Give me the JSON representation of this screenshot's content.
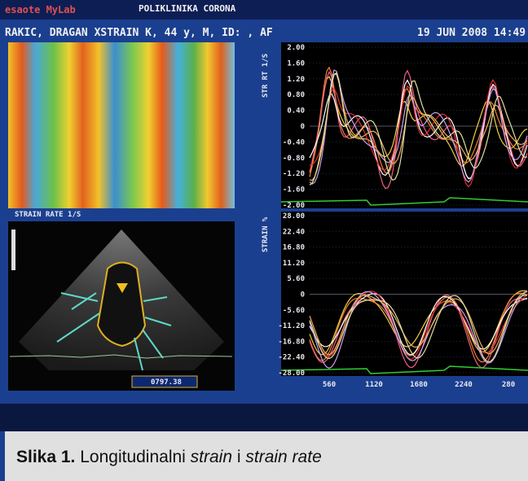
{
  "header": {
    "brand": "esaote MyLab",
    "clinic": "POLIKLINIKA CORONA",
    "patient": "RAKIC, DRAGAN XSTRAIN K, 44 y, M, ID: , AF",
    "date": "19 JUN 2008 14:49"
  },
  "left": {
    "heatmap_label": "STRAIN RATE 1/S",
    "readout": "0797.38"
  },
  "strain_rate_plot": {
    "axis_label": "STR RT 1/S",
    "ticks": [
      "2.00",
      "1.60",
      "1.20",
      "0.80",
      "0.40",
      "0",
      "-0.40",
      "-0.80",
      "-1.20",
      "-1.60",
      "-2.00"
    ]
  },
  "strain_plot": {
    "axis_label": "STRAIN %",
    "ticks": [
      "28.00",
      "22.40",
      "16.80",
      "11.20",
      "5.60",
      "0",
      "-5.60",
      "-11.20",
      "-16.80",
      "-22.40",
      "-28.00"
    ]
  },
  "x_ticks": [
    "560",
    "1120",
    "1680",
    "2240",
    "280"
  ],
  "caption": {
    "label": "Slika 1.",
    "part1": " Longitudinalni ",
    "part2": "strain",
    "part3": " i ",
    "part4": "strain rate"
  }
}
